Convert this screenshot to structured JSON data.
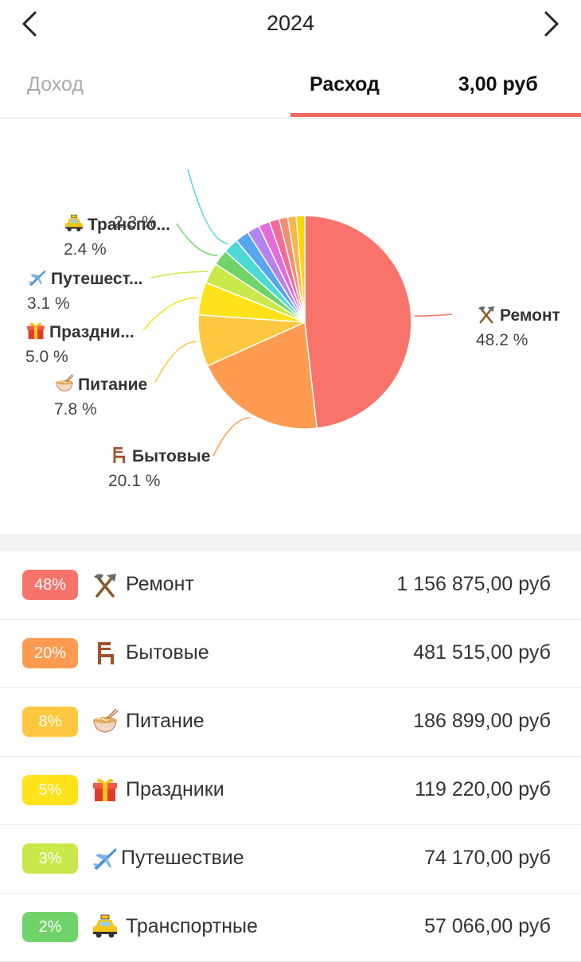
{
  "header": {
    "year": "2024",
    "prev_icon": "chevron-left-icon",
    "next_icon": "chevron-right-icon"
  },
  "tabs": {
    "income_label": "Доход",
    "expense_label": "Расход",
    "expense_total_partial": "3,00 руб"
  },
  "colors": {
    "accent": "#ee6a5e",
    "slices": [
      "#f8736a",
      "#ff9b50",
      "#fdc83f",
      "#ffe21a",
      "#c9e84a",
      "#6fd36a",
      "#4dd9d6",
      "#58a6ef",
      "#b583f0",
      "#e46bd8",
      "#f56a96",
      "#f18d72",
      "#ffb347",
      "#ffd700"
    ]
  },
  "chart_data": {
    "type": "pie",
    "title": "",
    "slices": [
      {
        "label": "Ремонт",
        "value": 48.2,
        "display": "48.2 %",
        "icon": "hammer-pick-icon"
      },
      {
        "label": "Бытовые",
        "value": 20.1,
        "display": "20.1 %",
        "icon": "chair-icon"
      },
      {
        "label": "Питание",
        "value": 7.8,
        "display": "7.8 %",
        "icon": "noodle-bowl-icon"
      },
      {
        "label": "Праздни...",
        "value": 5.0,
        "display": "5.0 %",
        "icon": "gift-icon"
      },
      {
        "label": "Путешест...",
        "value": 3.1,
        "display": "3.1 %",
        "icon": "airplane-icon"
      },
      {
        "label": "Транспо...",
        "value": 2.4,
        "display": "2.4 %",
        "icon": "taxi-icon"
      },
      {
        "label": "",
        "value": 2.3,
        "display": "2.3 %",
        "icon": ""
      },
      {
        "label": "",
        "value": 2.1,
        "display": "",
        "icon": ""
      },
      {
        "label": "",
        "value": 1.9,
        "display": "",
        "icon": ""
      },
      {
        "label": "",
        "value": 1.7,
        "display": "",
        "icon": ""
      },
      {
        "label": "",
        "value": 1.5,
        "display": "",
        "icon": ""
      },
      {
        "label": "",
        "value": 1.3,
        "display": "",
        "icon": ""
      },
      {
        "label": "",
        "value": 1.3,
        "display": "",
        "icon": ""
      },
      {
        "label": "",
        "value": 1.3,
        "display": "",
        "icon": ""
      }
    ]
  },
  "categories": [
    {
      "percent": "48%",
      "name": "Ремонт",
      "amount": "1 156 875,00 руб",
      "icon": "hammer-pick-icon",
      "color": "#f8736a"
    },
    {
      "percent": "20%",
      "name": "Бытовые",
      "amount": "481 515,00 руб",
      "icon": "chair-icon",
      "color": "#ff9b50"
    },
    {
      "percent": "8%",
      "name": "Питание",
      "amount": "186 899,00 руб",
      "icon": "noodle-bowl-icon",
      "color": "#fdc83f"
    },
    {
      "percent": "5%",
      "name": "Праздники",
      "amount": "119 220,00 руб",
      "icon": "gift-icon",
      "color": "#ffe21a"
    },
    {
      "percent": "3%",
      "name": "Путешествие",
      "amount": "74 170,00 руб",
      "icon": "airplane-icon",
      "color": "#c9e84a"
    },
    {
      "percent": "2%",
      "name": "Транспортные",
      "amount": "57 066,00 руб",
      "icon": "taxi-icon",
      "color": "#6fd36a"
    }
  ]
}
